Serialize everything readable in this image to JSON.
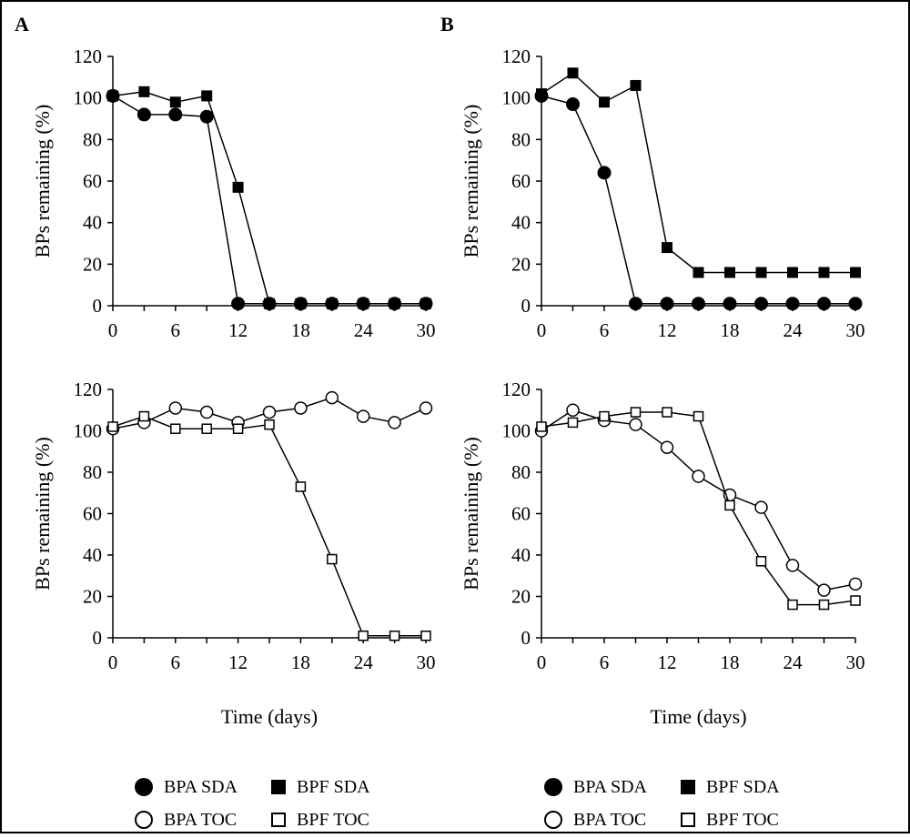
{
  "figure": {
    "frame_color": "#000000",
    "series_color": "#000000"
  },
  "panel_labels": {
    "a": "A",
    "b": "B"
  },
  "legend": [
    {
      "items": [
        {
          "label": "BPA SDA",
          "icon": "filled-circle"
        },
        {
          "label": "BPF SDA",
          "icon": "filled-square"
        },
        {
          "label": "BPA TOC",
          "icon": "open-circle"
        },
        {
          "label": "BPF TOC",
          "icon": "open-square"
        }
      ]
    },
    {
      "items": [
        {
          "label": "BPA SDA",
          "icon": "filled-circle"
        },
        {
          "label": "BPF SDA",
          "icon": "filled-square"
        },
        {
          "label": "BPA TOC",
          "icon": "open-circle"
        },
        {
          "label": "BPF TOC",
          "icon": "open-square"
        }
      ]
    }
  ],
  "chart_data": [
    {
      "id": "A-top",
      "type": "line",
      "title": "",
      "xlabel": "",
      "ylabel": "BPs remaining (%)",
      "xlim": [
        0,
        30
      ],
      "ylim": [
        0,
        120
      ],
      "xticks": [
        0,
        6,
        12,
        18,
        24,
        30
      ],
      "yticks": [
        0,
        20,
        40,
        60,
        80,
        100,
        120
      ],
      "series": [
        {
          "name": "BPA SDA",
          "marker": "filled-circle",
          "x": [
            0,
            3,
            6,
            9,
            12,
            15,
            18,
            21,
            24,
            27,
            30
          ],
          "y": [
            101,
            92,
            92,
            91,
            1,
            1,
            1,
            1,
            1,
            1,
            1
          ]
        },
        {
          "name": "BPF SDA",
          "marker": "filled-square",
          "x": [
            0,
            3,
            6,
            9,
            12,
            15,
            18,
            21,
            24,
            27,
            30
          ],
          "y": [
            101,
            103,
            98,
            101,
            57,
            1,
            1,
            1,
            1,
            1,
            1
          ]
        }
      ]
    },
    {
      "id": "B-top",
      "type": "line",
      "title": "",
      "xlabel": "",
      "ylabel": "BPs remaining (%)",
      "xlim": [
        0,
        30
      ],
      "ylim": [
        0,
        120
      ],
      "xticks": [
        0,
        6,
        12,
        18,
        24,
        30
      ],
      "yticks": [
        0,
        20,
        40,
        60,
        80,
        100,
        120
      ],
      "series": [
        {
          "name": "BPA SDA",
          "marker": "filled-circle",
          "x": [
            0,
            3,
            6,
            9,
            12,
            15,
            18,
            21,
            24,
            27,
            30
          ],
          "y": [
            101,
            97,
            64,
            1,
            1,
            1,
            1,
            1,
            1,
            1,
            1
          ]
        },
        {
          "name": "BPF SDA",
          "marker": "filled-square",
          "x": [
            0,
            3,
            6,
            9,
            12,
            15,
            18,
            21,
            24,
            27,
            30
          ],
          "y": [
            102,
            112,
            98,
            106,
            28,
            16,
            16,
            16,
            16,
            16,
            16
          ]
        }
      ]
    },
    {
      "id": "A-bottom",
      "type": "line",
      "title": "",
      "xlabel": "Time (days)",
      "ylabel": "BPs remaining (%)",
      "xlim": [
        0,
        30
      ],
      "ylim": [
        0,
        120
      ],
      "xticks": [
        0,
        6,
        12,
        18,
        24,
        30
      ],
      "yticks": [
        0,
        20,
        40,
        60,
        80,
        100,
        120
      ],
      "series": [
        {
          "name": "BPA TOC",
          "marker": "open-circle",
          "x": [
            0,
            3,
            6,
            9,
            12,
            15,
            18,
            21,
            24,
            27,
            30
          ],
          "y": [
            101,
            104,
            111,
            109,
            104,
            109,
            111,
            116,
            107,
            104,
            111
          ]
        },
        {
          "name": "BPF TOC",
          "marker": "open-square",
          "x": [
            0,
            3,
            6,
            9,
            12,
            15,
            18,
            21,
            24,
            27,
            30
          ],
          "y": [
            102,
            107,
            101,
            101,
            101,
            103,
            73,
            38,
            1,
            1,
            1
          ]
        }
      ]
    },
    {
      "id": "B-bottom",
      "type": "line",
      "title": "",
      "xlabel": "Time (days)",
      "ylabel": "BPs remaining (%)",
      "xlim": [
        0,
        30
      ],
      "ylim": [
        0,
        120
      ],
      "xticks": [
        0,
        6,
        12,
        18,
        24,
        30
      ],
      "yticks": [
        0,
        20,
        40,
        60,
        80,
        100,
        120
      ],
      "series": [
        {
          "name": "BPA TOC",
          "marker": "open-circle",
          "x": [
            0,
            3,
            6,
            9,
            12,
            15,
            18,
            21,
            24,
            27,
            30
          ],
          "y": [
            100,
            110,
            105,
            103,
            92,
            78,
            69,
            63,
            35,
            23,
            26
          ]
        },
        {
          "name": "BPF TOC",
          "marker": "open-square",
          "x": [
            0,
            3,
            6,
            9,
            12,
            15,
            18,
            21,
            24,
            27,
            30
          ],
          "y": [
            102,
            104,
            107,
            109,
            109,
            107,
            64,
            37,
            16,
            16,
            18
          ]
        }
      ]
    }
  ]
}
